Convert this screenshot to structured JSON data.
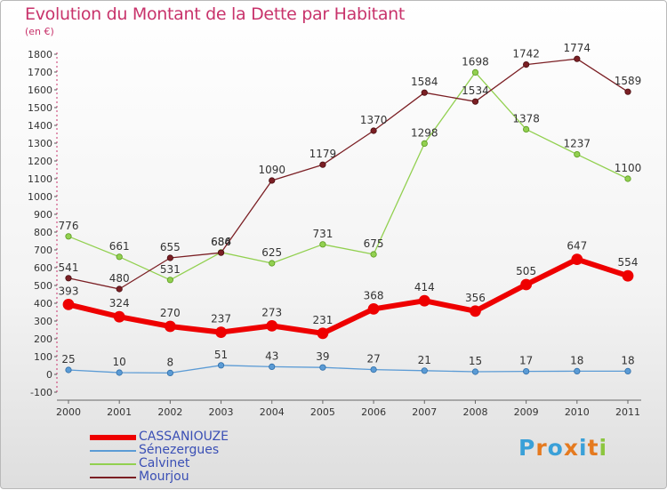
{
  "header": {
    "title": "Evolution du Montant de la Dette par Habitant",
    "subtitle": "(en €)"
  },
  "logo": {
    "text": "Proxiti"
  },
  "chart_data": {
    "type": "line",
    "x": [
      "2000",
      "2001",
      "2002",
      "2003",
      "2004",
      "2005",
      "2006",
      "2007",
      "2008",
      "2009",
      "2010",
      "2011"
    ],
    "ylim": [
      -100,
      1800
    ],
    "yticks": [
      -100,
      0,
      100,
      200,
      300,
      400,
      500,
      600,
      700,
      800,
      900,
      1000,
      1100,
      1200,
      1300,
      1400,
      1500,
      1600,
      1700,
      1800
    ],
    "grid": false,
    "legend_position": "bottom-left",
    "series": [
      {
        "name": "CASSANIOUZE",
        "color": "#ee0000",
        "values": [
          393,
          324,
          270,
          237,
          273,
          231,
          368,
          414,
          356,
          505,
          647,
          554
        ]
      },
      {
        "name": "Sénezergues",
        "color": "#5b9bd5",
        "values": [
          25,
          10,
          8,
          51,
          43,
          39,
          27,
          21,
          15,
          17,
          18,
          18
        ]
      },
      {
        "name": "Calvinet",
        "color": "#92d050",
        "values": [
          776,
          661,
          531,
          686,
          625,
          731,
          675,
          1298,
          1698,
          1378,
          1237,
          1100
        ]
      },
      {
        "name": "Mourjou",
        "color": "#7b1f24",
        "values": [
          541,
          480,
          655,
          684,
          1090,
          1179,
          1370,
          1584,
          1534,
          1742,
          1774,
          1589
        ]
      }
    ]
  }
}
